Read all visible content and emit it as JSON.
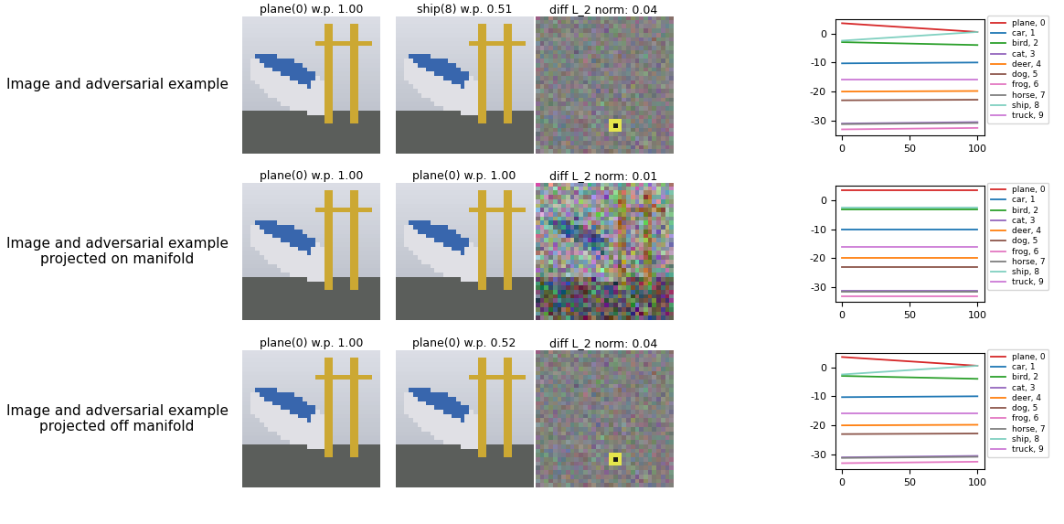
{
  "figure": {
    "rows": [
      {
        "label": "Image and adversarial example",
        "titles": [
          "plane(0) w.p. 1.00",
          "ship(8) w.p. 0.51",
          "diff L_2 norm: 0.04"
        ]
      },
      {
        "label": "Image and adversarial example\nprojected on manifold",
        "titles": [
          "plane(0) w.p. 1.00",
          "plane(0) w.p. 1.00",
          "diff L_2 norm: 0.01"
        ]
      },
      {
        "label": "Image and adversarial example\nprojected off manifold",
        "titles": [
          "plane(0) w.p. 1.00",
          "plane(0) w.p. 0.52",
          "diff L_2 norm: 0.04"
        ]
      }
    ]
  },
  "chart_data": [
    {
      "type": "line",
      "x": [
        0,
        100
      ],
      "xlim": [
        -5,
        105
      ],
      "xticks": [
        0,
        50,
        100
      ],
      "ylim": [
        -35,
        5
      ],
      "yticks": [
        -30,
        -20,
        -10,
        0
      ],
      "legend": "upper left",
      "series": [
        {
          "name": "plane, 0",
          "color": "#d62728",
          "values": [
            3.5,
            0.5
          ]
        },
        {
          "name": "car, 1",
          "color": "#1f77b4",
          "values": [
            -10.3,
            -10.0
          ]
        },
        {
          "name": "bird, 2",
          "color": "#2ca02c",
          "values": [
            -3.0,
            -4.0
          ]
        },
        {
          "name": "cat, 3",
          "color": "#9467bd",
          "values": [
            -31.0,
            -30.5
          ]
        },
        {
          "name": "deer, 4",
          "color": "#ff7f0e",
          "values": [
            -20.0,
            -19.8
          ]
        },
        {
          "name": "dog, 5",
          "color": "#8c564b",
          "values": [
            -23.0,
            -22.8
          ]
        },
        {
          "name": "frog, 6",
          "color": "#e377c2",
          "values": [
            -33.0,
            -32.5
          ]
        },
        {
          "name": "horse, 7",
          "color": "#7f7f7f",
          "values": [
            -31.2,
            -30.8
          ]
        },
        {
          "name": "ship, 8",
          "color": "#80d0c0",
          "values": [
            -2.5,
            0.5
          ]
        },
        {
          "name": "truck, 9",
          "color": "#cc79d6",
          "values": [
            -16.0,
            -16.0
          ]
        }
      ]
    },
    {
      "type": "line",
      "x": [
        0,
        100
      ],
      "xlim": [
        -5,
        105
      ],
      "xticks": [
        0,
        50,
        100
      ],
      "ylim": [
        -35,
        5
      ],
      "yticks": [
        -30,
        -20,
        -10,
        0
      ],
      "legend": "upper left",
      "series": [
        {
          "name": "plane, 0",
          "color": "#d62728",
          "values": [
            3.5,
            3.5
          ]
        },
        {
          "name": "car, 1",
          "color": "#1f77b4",
          "values": [
            -10.3,
            -10.3
          ]
        },
        {
          "name": "bird, 2",
          "color": "#2ca02c",
          "values": [
            -3.2,
            -3.2
          ]
        },
        {
          "name": "cat, 3",
          "color": "#9467bd",
          "values": [
            -31.2,
            -31.2
          ]
        },
        {
          "name": "deer, 4",
          "color": "#ff7f0e",
          "values": [
            -20.0,
            -20.0
          ]
        },
        {
          "name": "dog, 5",
          "color": "#8c564b",
          "values": [
            -23.0,
            -23.0
          ]
        },
        {
          "name": "frog, 6",
          "color": "#e377c2",
          "values": [
            -33.0,
            -33.0
          ]
        },
        {
          "name": "horse, 7",
          "color": "#7f7f7f",
          "values": [
            -31.4,
            -31.4
          ]
        },
        {
          "name": "ship, 8",
          "color": "#80d0c0",
          "values": [
            -2.6,
            -2.6
          ]
        },
        {
          "name": "truck, 9",
          "color": "#cc79d6",
          "values": [
            -16.0,
            -16.0
          ]
        }
      ]
    },
    {
      "type": "line",
      "x": [
        0,
        100
      ],
      "xlim": [
        -5,
        105
      ],
      "xticks": [
        0,
        50,
        100
      ],
      "ylim": [
        -35,
        5
      ],
      "yticks": [
        -30,
        -20,
        -10,
        0
      ],
      "legend": "upper left",
      "series": [
        {
          "name": "plane, 0",
          "color": "#d62728",
          "values": [
            3.5,
            0.5
          ]
        },
        {
          "name": "car, 1",
          "color": "#1f77b4",
          "values": [
            -10.3,
            -10.0
          ]
        },
        {
          "name": "bird, 2",
          "color": "#2ca02c",
          "values": [
            -3.0,
            -4.0
          ]
        },
        {
          "name": "cat, 3",
          "color": "#9467bd",
          "values": [
            -31.0,
            -30.5
          ]
        },
        {
          "name": "deer, 4",
          "color": "#ff7f0e",
          "values": [
            -20.0,
            -19.8
          ]
        },
        {
          "name": "dog, 5",
          "color": "#8c564b",
          "values": [
            -23.0,
            -22.8
          ]
        },
        {
          "name": "frog, 6",
          "color": "#e377c2",
          "values": [
            -33.0,
            -32.5
          ]
        },
        {
          "name": "horse, 7",
          "color": "#7f7f7f",
          "values": [
            -31.2,
            -30.8
          ]
        },
        {
          "name": "ship, 8",
          "color": "#80d0c0",
          "values": [
            -2.5,
            0.5
          ]
        },
        {
          "name": "truck, 9",
          "color": "#cc79d6",
          "values": [
            -16.0,
            -16.0
          ]
        }
      ]
    }
  ]
}
